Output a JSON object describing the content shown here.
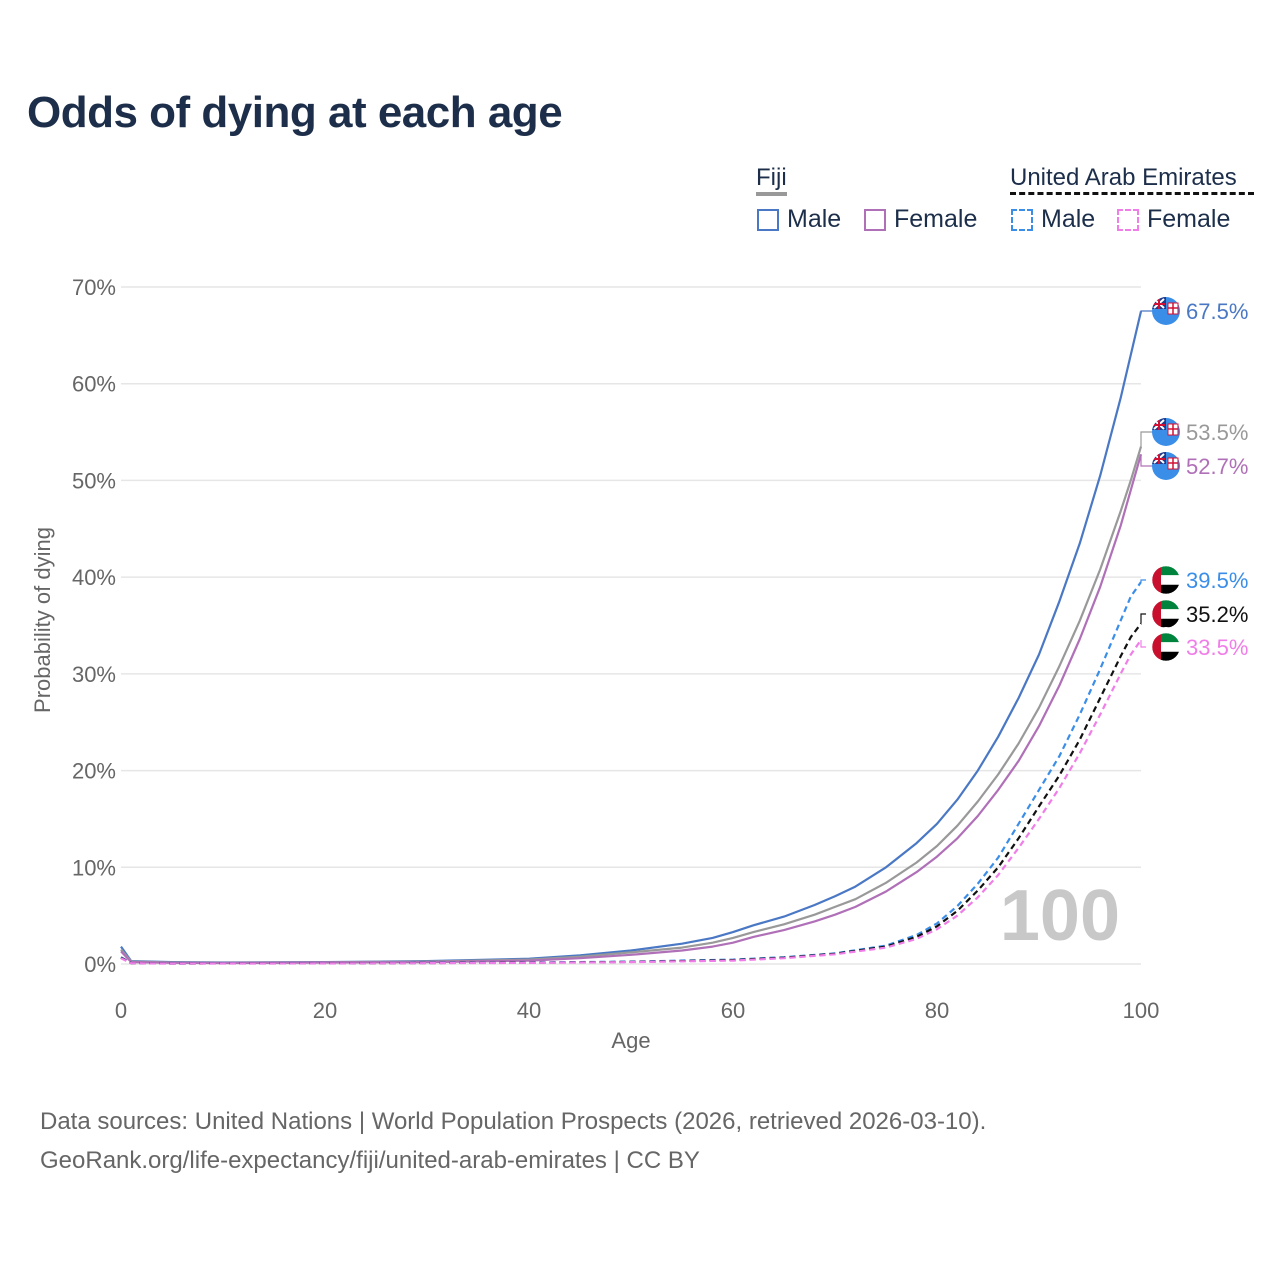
{
  "title": "Odds of dying at each age",
  "legend": {
    "groups": [
      {
        "country": "Fiji",
        "line_color": "#999999",
        "dashed": false,
        "items": [
          {
            "label": "Male",
            "color": "#4a78c4",
            "dashed": false
          },
          {
            "label": "Female",
            "color": "#b070b8",
            "dashed": false
          }
        ]
      },
      {
        "country": "United Arab Emirates",
        "line_color": "#111111",
        "dashed": true,
        "items": [
          {
            "label": "Male",
            "color": "#3b8ee8",
            "dashed": true
          },
          {
            "label": "Female",
            "color": "#f07ee8",
            "dashed": true
          }
        ]
      }
    ]
  },
  "watermark": "100",
  "footer": {
    "source": "Data sources: United Nations | World Population Prospects (2026, retrieved 2026-03-10).",
    "link": "GeoRank.org/life-expectancy/fiji/united-arab-emirates | CC BY"
  },
  "chart_data": {
    "type": "line",
    "title": "Odds of dying at each age",
    "xlabel": "Age",
    "ylabel": "Probability of dying",
    "xlim": [
      0,
      100
    ],
    "ylim": [
      0,
      70
    ],
    "xticks": [
      0,
      20,
      40,
      60,
      80,
      100
    ],
    "yticks": [
      0,
      10,
      20,
      30,
      40,
      50,
      60,
      70
    ],
    "ytick_labels": [
      "0%",
      "10%",
      "20%",
      "30%",
      "40%",
      "50%",
      "60%",
      "70%"
    ],
    "grid": true,
    "series": [
      {
        "name": "Fiji Male",
        "country": "Fiji",
        "color": "#4a78c4",
        "dashed": false,
        "end_label": "67.5%",
        "flag": "fiji",
        "points": [
          [
            0,
            1.8
          ],
          [
            1,
            0.3
          ],
          [
            5,
            0.2
          ],
          [
            10,
            0.15
          ],
          [
            20,
            0.2
          ],
          [
            30,
            0.3
          ],
          [
            40,
            0.55
          ],
          [
            45,
            0.9
          ],
          [
            50,
            1.4
          ],
          [
            55,
            2.1
          ],
          [
            58,
            2.7
          ],
          [
            60,
            3.3
          ],
          [
            62,
            4.0
          ],
          [
            65,
            4.9
          ],
          [
            68,
            6.1
          ],
          [
            70,
            7.0
          ],
          [
            72,
            8.0
          ],
          [
            75,
            10.0
          ],
          [
            78,
            12.5
          ],
          [
            80,
            14.5
          ],
          [
            82,
            17.0
          ],
          [
            84,
            20.0
          ],
          [
            86,
            23.5
          ],
          [
            88,
            27.5
          ],
          [
            90,
            32.0
          ],
          [
            92,
            37.5
          ],
          [
            94,
            43.5
          ],
          [
            96,
            50.5
          ],
          [
            98,
            58.5
          ],
          [
            99,
            63.0
          ],
          [
            100,
            67.5
          ]
        ]
      },
      {
        "name": "Fiji Both sexes",
        "country": "Fiji",
        "color": "#999999",
        "dashed": false,
        "end_label": "53.5%",
        "flag": "fiji",
        "points": [
          [
            0,
            1.5
          ],
          [
            1,
            0.25
          ],
          [
            5,
            0.15
          ],
          [
            10,
            0.12
          ],
          [
            20,
            0.18
          ],
          [
            30,
            0.25
          ],
          [
            40,
            0.45
          ],
          [
            45,
            0.75
          ],
          [
            50,
            1.2
          ],
          [
            55,
            1.7
          ],
          [
            58,
            2.2
          ],
          [
            60,
            2.7
          ],
          [
            62,
            3.3
          ],
          [
            65,
            4.1
          ],
          [
            68,
            5.1
          ],
          [
            70,
            5.9
          ],
          [
            72,
            6.7
          ],
          [
            75,
            8.4
          ],
          [
            78,
            10.5
          ],
          [
            80,
            12.2
          ],
          [
            82,
            14.3
          ],
          [
            84,
            16.8
          ],
          [
            86,
            19.6
          ],
          [
            88,
            22.8
          ],
          [
            90,
            26.5
          ],
          [
            92,
            30.8
          ],
          [
            94,
            35.5
          ],
          [
            96,
            40.8
          ],
          [
            98,
            46.8
          ],
          [
            99,
            50.0
          ],
          [
            100,
            53.5
          ]
        ]
      },
      {
        "name": "Fiji Female",
        "country": "Fiji",
        "color": "#b070b8",
        "dashed": false,
        "end_label": "52.7%",
        "flag": "fiji",
        "points": [
          [
            0,
            1.3
          ],
          [
            1,
            0.2
          ],
          [
            5,
            0.12
          ],
          [
            10,
            0.1
          ],
          [
            20,
            0.15
          ],
          [
            30,
            0.2
          ],
          [
            40,
            0.35
          ],
          [
            45,
            0.6
          ],
          [
            50,
            0.95
          ],
          [
            55,
            1.4
          ],
          [
            58,
            1.8
          ],
          [
            60,
            2.2
          ],
          [
            62,
            2.8
          ],
          [
            65,
            3.5
          ],
          [
            68,
            4.4
          ],
          [
            70,
            5.1
          ],
          [
            72,
            5.9
          ],
          [
            75,
            7.5
          ],
          [
            78,
            9.5
          ],
          [
            80,
            11.1
          ],
          [
            82,
            13.0
          ],
          [
            84,
            15.3
          ],
          [
            86,
            18.0
          ],
          [
            88,
            21.0
          ],
          [
            90,
            24.6
          ],
          [
            92,
            28.8
          ],
          [
            94,
            33.6
          ],
          [
            96,
            39.0
          ],
          [
            98,
            45.3
          ],
          [
            99,
            49.0
          ],
          [
            100,
            52.7
          ]
        ]
      },
      {
        "name": "UAE Male",
        "country": "United Arab Emirates",
        "color": "#3b8ee8",
        "dashed": true,
        "end_label": "39.5%",
        "flag": "uae",
        "points": [
          [
            0,
            0.7
          ],
          [
            1,
            0.1
          ],
          [
            5,
            0.05
          ],
          [
            20,
            0.08
          ],
          [
            40,
            0.15
          ],
          [
            50,
            0.25
          ],
          [
            60,
            0.45
          ],
          [
            65,
            0.7
          ],
          [
            70,
            1.1
          ],
          [
            75,
            1.9
          ],
          [
            78,
            3.0
          ],
          [
            80,
            4.2
          ],
          [
            82,
            6.0
          ],
          [
            84,
            8.3
          ],
          [
            86,
            11.0
          ],
          [
            88,
            14.5
          ],
          [
            90,
            18.0
          ],
          [
            92,
            21.5
          ],
          [
            94,
            25.8
          ],
          [
            96,
            30.5
          ],
          [
            98,
            35.5
          ],
          [
            99,
            38.0
          ],
          [
            100,
            39.5
          ]
        ]
      },
      {
        "name": "UAE Both sexes",
        "country": "United Arab Emirates",
        "color": "#111111",
        "dashed": true,
        "end_label": "35.2%",
        "flag": "uae",
        "points": [
          [
            0,
            0.65
          ],
          [
            1,
            0.09
          ],
          [
            5,
            0.05
          ],
          [
            20,
            0.07
          ],
          [
            40,
            0.13
          ],
          [
            50,
            0.22
          ],
          [
            60,
            0.4
          ],
          [
            65,
            0.65
          ],
          [
            70,
            1.05
          ],
          [
            75,
            1.8
          ],
          [
            78,
            2.8
          ],
          [
            80,
            3.9
          ],
          [
            82,
            5.5
          ],
          [
            84,
            7.6
          ],
          [
            86,
            10.0
          ],
          [
            88,
            13.0
          ],
          [
            90,
            16.3
          ],
          [
            92,
            19.5
          ],
          [
            94,
            23.2
          ],
          [
            96,
            27.5
          ],
          [
            98,
            31.8
          ],
          [
            99,
            33.8
          ],
          [
            100,
            35.2
          ]
        ]
      },
      {
        "name": "UAE Female",
        "country": "United Arab Emirates",
        "color": "#f07ee8",
        "dashed": true,
        "end_label": "33.5%",
        "flag": "uae",
        "points": [
          [
            0,
            0.6
          ],
          [
            1,
            0.08
          ],
          [
            5,
            0.04
          ],
          [
            20,
            0.06
          ],
          [
            40,
            0.11
          ],
          [
            50,
            0.2
          ],
          [
            60,
            0.35
          ],
          [
            65,
            0.6
          ],
          [
            70,
            1.0
          ],
          [
            75,
            1.7
          ],
          [
            78,
            2.6
          ],
          [
            80,
            3.6
          ],
          [
            82,
            5.0
          ],
          [
            84,
            6.9
          ],
          [
            86,
            9.2
          ],
          [
            88,
            12.0
          ],
          [
            90,
            15.0
          ],
          [
            92,
            18.2
          ],
          [
            94,
            21.8
          ],
          [
            96,
            25.8
          ],
          [
            98,
            30.0
          ],
          [
            99,
            32.0
          ],
          [
            100,
            33.5
          ]
        ]
      }
    ]
  }
}
